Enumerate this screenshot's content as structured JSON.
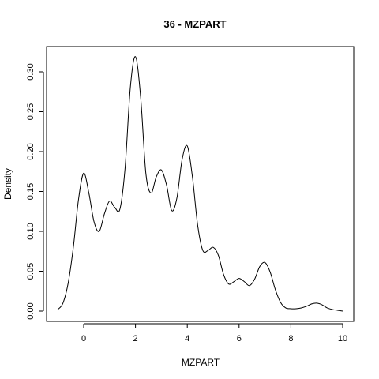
{
  "chart_data": {
    "type": "line",
    "title": "36 - MZPART",
    "xlabel": "MZPART",
    "ylabel": "Density",
    "xlim": [
      -1,
      10
    ],
    "ylim": [
      0,
      0.32
    ],
    "x_ticks": [
      0,
      2,
      4,
      6,
      8,
      10
    ],
    "x_tick_labels": [
      "0",
      "2",
      "4",
      "6",
      "8",
      "10"
    ],
    "y_ticks": [
      0.0,
      0.05,
      0.1,
      0.15,
      0.2,
      0.25,
      0.3
    ],
    "y_tick_labels": [
      "0.00",
      "0.05",
      "0.10",
      "0.15",
      "0.20",
      "0.25",
      "0.30"
    ],
    "grid": false,
    "series": [
      {
        "x": [
          -1.0,
          -0.8,
          -0.6,
          -0.4,
          -0.2,
          0.0,
          0.2,
          0.4,
          0.6,
          0.8,
          1.0,
          1.2,
          1.4,
          1.6,
          1.8,
          2.0,
          2.2,
          2.4,
          2.6,
          2.8,
          3.0,
          3.2,
          3.4,
          3.6,
          3.8,
          4.0,
          4.2,
          4.4,
          4.6,
          4.8,
          5.0,
          5.2,
          5.4,
          5.6,
          5.8,
          6.0,
          6.2,
          6.4,
          6.6,
          6.8,
          7.0,
          7.2,
          7.4,
          7.6,
          7.8,
          8.0,
          8.2,
          8.4,
          8.6,
          8.8,
          9.0,
          9.2,
          9.4,
          9.6,
          9.8,
          10.0
        ],
        "y": [
          0.002,
          0.01,
          0.035,
          0.08,
          0.14,
          0.173,
          0.148,
          0.112,
          0.1,
          0.122,
          0.138,
          0.13,
          0.128,
          0.18,
          0.28,
          0.319,
          0.268,
          0.173,
          0.148,
          0.168,
          0.177,
          0.158,
          0.126,
          0.142,
          0.19,
          0.207,
          0.168,
          0.108,
          0.076,
          0.076,
          0.08,
          0.07,
          0.046,
          0.034,
          0.037,
          0.041,
          0.037,
          0.032,
          0.04,
          0.056,
          0.061,
          0.049,
          0.027,
          0.011,
          0.004,
          0.003,
          0.003,
          0.004,
          0.006,
          0.009,
          0.01,
          0.008,
          0.004,
          0.002,
          0.001,
          0.0
        ]
      }
    ]
  }
}
